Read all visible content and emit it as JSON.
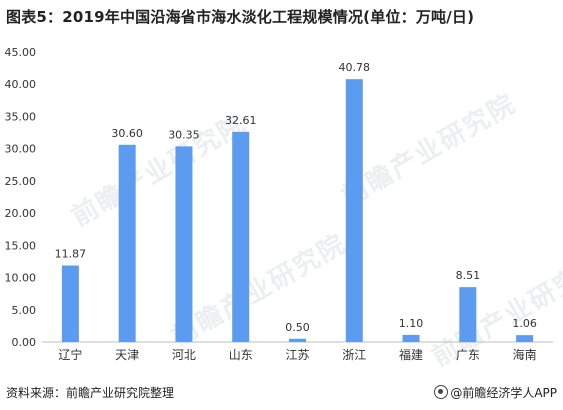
{
  "title": "图表5：2019年中国沿海省市海水淡化工程规模情况(单位：万吨/日)",
  "footer": {
    "source": "资料来源：前瞻产业研究院整理",
    "brand": "@前瞻经济学人APP"
  },
  "watermark": "前瞻产业研究院",
  "colors": {
    "bar": "#5b9bf0",
    "axis": "#bfbfbf",
    "text": "#333333",
    "grid": "#e8e8e8"
  },
  "chart_data": {
    "type": "bar",
    "title": "图表5：2019年中国沿海省市海水淡化工程规模情况(单位：万吨/日)",
    "categories": [
      "辽宁",
      "天津",
      "河北",
      "山东",
      "江苏",
      "浙江",
      "福建",
      "广东",
      "海南"
    ],
    "values": [
      11.87,
      30.6,
      30.35,
      32.61,
      0.5,
      40.78,
      1.1,
      8.51,
      1.06
    ],
    "value_labels": [
      "11.87",
      "30.60",
      "30.35",
      "32.61",
      "0.50",
      "40.78",
      "1.10",
      "8.51",
      "1.06"
    ],
    "ylim": [
      0,
      45
    ],
    "yticks": [
      "0.00",
      "5.00",
      "10.00",
      "15.00",
      "20.00",
      "25.00",
      "30.00",
      "35.00",
      "40.00",
      "45.00"
    ],
    "xlabel": "",
    "ylabel": "",
    "grid": false,
    "legend": "none"
  }
}
